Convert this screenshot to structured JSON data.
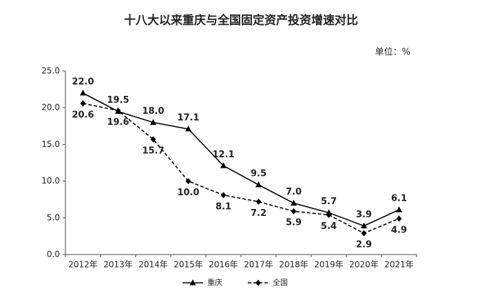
{
  "chart_data": {
    "type": "line",
    "title": "十八大以来重庆与全国固定资产投资增速对比",
    "unit": "单位：%",
    "categories": [
      "2012年",
      "2013年",
      "2014年",
      "2015年",
      "2016年",
      "2017年",
      "2018年",
      "2019年",
      "2020年",
      "2021年"
    ],
    "series": [
      {
        "name": "重庆",
        "color": "#000000",
        "marker": "triangle",
        "dashed": false,
        "values": [
          22.0,
          19.5,
          18.0,
          17.1,
          12.1,
          9.5,
          7.0,
          5.7,
          3.9,
          6.1
        ],
        "value_labels": [
          "22.0",
          "19.5",
          "18.0",
          "17.1",
          "12.1",
          "9.5",
          "7.0",
          "5.7",
          "3.9",
          "6.1"
        ]
      },
      {
        "name": "全国",
        "color": "#000000",
        "marker": "diamond",
        "dashed": true,
        "values": [
          20.6,
          19.6,
          15.7,
          10.0,
          8.1,
          7.2,
          5.9,
          5.4,
          2.9,
          4.9
        ],
        "value_labels": [
          "20.6",
          "19.6",
          "15.7",
          "10.0",
          "8.1",
          "7.2",
          "5.9",
          "5.4",
          "2.9",
          "4.9"
        ]
      }
    ],
    "ylim": [
      0,
      25
    ],
    "yticks": [
      {
        "value": 0,
        "label": "0.0"
      },
      {
        "value": 5,
        "label": "5.0"
      },
      {
        "value": 10,
        "label": "10.0"
      },
      {
        "value": 15,
        "label": "15.0"
      },
      {
        "value": 20,
        "label": "20.0"
      },
      {
        "value": 25,
        "label": "25.0"
      }
    ],
    "grid": false,
    "legend": "bottom"
  }
}
